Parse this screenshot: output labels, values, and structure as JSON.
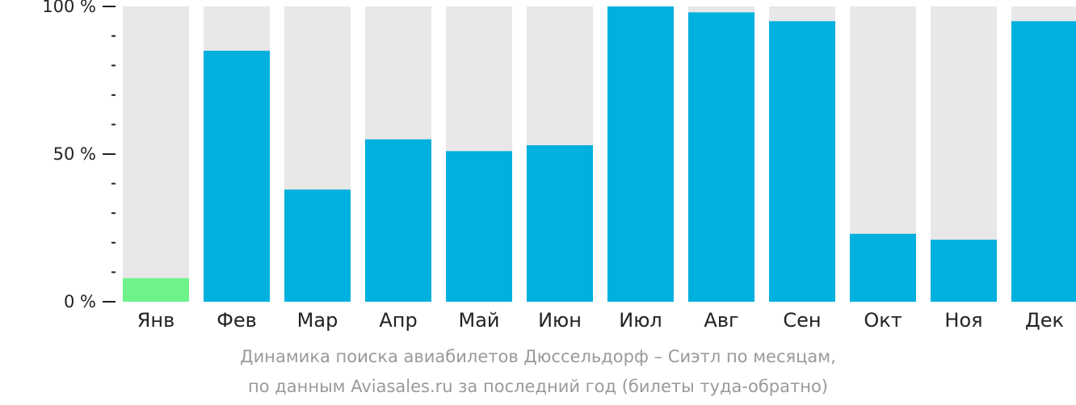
{
  "chart_data": {
    "type": "bar",
    "categories": [
      "Янв",
      "Фев",
      "Мар",
      "Апр",
      "Май",
      "Июн",
      "Июл",
      "Авг",
      "Сен",
      "Окт",
      "Ноя",
      "Дек"
    ],
    "values": [
      8,
      85,
      38,
      55,
      51,
      53,
      100,
      98,
      95,
      23,
      21,
      95
    ],
    "ylim": [
      0,
      100
    ],
    "yticks": [
      {
        "value": 0,
        "label": "0 %"
      },
      {
        "value": 50,
        "label": "50 %"
      },
      {
        "value": 100,
        "label": "100 %"
      }
    ],
    "minor_tick_step": 10,
    "grid": false,
    "title": "",
    "xlabel": "",
    "ylabel": "",
    "colors": {
      "bar": "#00b0de",
      "lowest_bar": "#6ef28a",
      "bar_background": "#e8e8e8"
    },
    "highlighted_category": "Янв"
  },
  "caption": {
    "line1": "Динамика поиска авиабилетов Дюссельдорф – Сиэтл по месяцам,",
    "line2": "по данным Aviasales.ru за последний год (билеты туда-обратно)"
  }
}
